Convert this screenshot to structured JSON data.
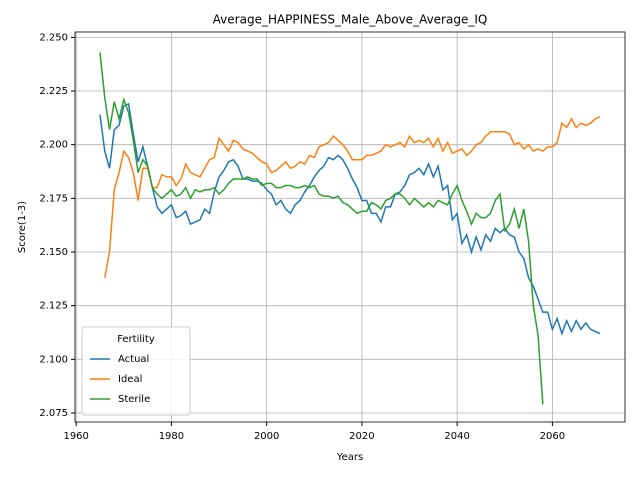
{
  "chart_data": {
    "type": "line",
    "title": "Average_HAPPINESS_Male_Above_Average_IQ",
    "xlabel": "Years",
    "ylabel": "Score(1-3)",
    "legend_title": "Fertility",
    "legend": "lower left",
    "grid": true,
    "xlim": [
      1959.75,
      2075.25
    ],
    "ylim": [
      2.0708,
      2.2525
    ],
    "xticks": [
      1960,
      1980,
      2000,
      2020,
      2040,
      2060
    ],
    "yticks": [
      2.075,
      {
        "value": 2.1,
        "label": "2.100"
      },
      2.125,
      {
        "value": 2.15,
        "label": "2.150"
      },
      2.175,
      {
        "value": 2.2,
        "label": "2.200"
      },
      2.225,
      {
        "value": 2.25,
        "label": "2.250"
      }
    ],
    "x": [
      1965,
      1966,
      1967,
      1968,
      1969,
      1970,
      1971,
      1972,
      1973,
      1974,
      1975,
      1976,
      1977,
      1978,
      1979,
      1980,
      1981,
      1982,
      1983,
      1984,
      1985,
      1986,
      1987,
      1988,
      1989,
      1990,
      1991,
      1992,
      1993,
      1994,
      1995,
      1996,
      1997,
      1998,
      1999,
      2000,
      2001,
      2002,
      2003,
      2004,
      2005,
      2006,
      2007,
      2008,
      2009,
      2010,
      2011,
      2012,
      2013,
      2014,
      2015,
      2016,
      2017,
      2018,
      2019,
      2020,
      2021,
      2022,
      2023,
      2024,
      2025,
      2026,
      2027,
      2028,
      2029,
      2030,
      2031,
      2032,
      2033,
      2034,
      2035,
      2036,
      2037,
      2038,
      2039,
      2040,
      2041,
      2042,
      2043,
      2044,
      2045,
      2046,
      2047,
      2048,
      2049,
      2050,
      2051,
      2052,
      2053,
      2054,
      2055,
      2056,
      2057,
      2058,
      2059,
      2060,
      2061,
      2062,
      2063,
      2064,
      2065,
      2066,
      2067,
      2068,
      2069,
      2070
    ],
    "series": [
      {
        "name": "Actual",
        "color": "#1f77b4",
        "values": [
          2.214,
          2.197,
          2.189,
          2.207,
          2.209,
          2.218,
          2.219,
          2.205,
          2.192,
          2.199,
          2.19,
          2.18,
          2.171,
          2.168,
          2.17,
          2.172,
          2.166,
          2.167,
          2.169,
          2.163,
          2.164,
          2.165,
          2.17,
          2.168,
          2.178,
          2.185,
          2.188,
          2.192,
          2.193,
          2.19,
          2.184,
          2.184,
          2.183,
          2.183,
          2.182,
          2.179,
          2.177,
          2.172,
          2.174,
          2.17,
          2.168,
          2.172,
          2.174,
          2.178,
          2.181,
          2.185,
          2.188,
          2.19,
          2.194,
          2.193,
          2.195,
          2.193,
          2.189,
          2.184,
          2.18,
          2.174,
          2.174,
          2.168,
          2.168,
          2.164,
          2.171,
          2.171,
          2.177,
          2.178,
          2.181,
          2.186,
          2.187,
          2.189,
          2.186,
          2.191,
          2.185,
          2.19,
          2.179,
          2.181,
          2.165,
          2.168,
          2.154,
          2.158,
          2.15,
          2.157,
          2.151,
          2.158,
          2.155,
          2.161,
          2.159,
          2.161,
          2.158,
          2.157,
          2.15,
          2.147,
          2.138,
          2.134,
          2.128,
          2.122,
          2.122,
          2.114,
          2.119,
          2.112,
          2.118,
          2.113,
          2.118,
          2.114,
          2.117,
          2.114,
          2.113,
          2.112
        ]
      },
      {
        "name": "Ideal",
        "color": "#ff7f0e",
        "values": [
          null,
          2.138,
          2.15,
          2.179,
          2.187,
          2.197,
          2.194,
          2.187,
          2.174,
          2.189,
          2.189,
          2.18,
          2.18,
          2.186,
          2.185,
          2.185,
          2.181,
          2.184,
          2.191,
          2.187,
          2.186,
          2.185,
          2.189,
          2.193,
          2.194,
          2.203,
          2.2,
          2.197,
          2.202,
          2.201,
          2.198,
          2.197,
          2.196,
          2.194,
          2.192,
          2.191,
          2.187,
          2.188,
          2.19,
          2.192,
          2.189,
          2.19,
          2.192,
          2.191,
          2.195,
          2.194,
          2.199,
          2.2,
          2.201,
          2.204,
          2.202,
          2.2,
          2.197,
          2.193,
          2.193,
          2.193,
          2.195,
          2.195,
          2.196,
          2.197,
          2.2,
          2.199,
          2.2,
          2.201,
          2.199,
          2.204,
          2.201,
          2.202,
          2.201,
          2.203,
          2.199,
          2.203,
          2.197,
          2.201,
          2.196,
          2.197,
          2.198,
          2.195,
          2.197,
          2.2,
          2.201,
          2.204,
          2.206,
          2.206,
          2.206,
          2.206,
          2.205,
          2.2,
          2.201,
          2.198,
          2.2,
          2.197,
          2.198,
          2.197,
          2.199,
          2.199,
          2.201,
          2.21,
          2.208,
          2.212,
          2.208,
          2.21,
          2.209,
          2.21,
          2.212,
          2.213
        ]
      },
      {
        "name": "Sterile",
        "color": "#2ca02c",
        "values": [
          2.243,
          2.222,
          2.207,
          2.22,
          2.212,
          2.221,
          2.215,
          2.202,
          2.187,
          2.193,
          2.19,
          2.18,
          2.177,
          2.175,
          2.177,
          2.179,
          2.176,
          2.177,
          2.18,
          2.175,
          2.179,
          2.178,
          2.179,
          2.179,
          2.18,
          2.177,
          2.179,
          2.182,
          2.184,
          2.184,
          2.184,
          2.185,
          2.184,
          2.184,
          2.181,
          2.182,
          2.182,
          2.18,
          2.18,
          2.181,
          2.181,
          2.18,
          2.18,
          2.181,
          2.18,
          2.181,
          2.177,
          2.176,
          2.176,
          2.175,
          2.176,
          2.173,
          2.172,
          2.17,
          2.168,
          2.169,
          2.169,
          2.173,
          2.172,
          2.17,
          2.174,
          2.175,
          2.177,
          2.177,
          2.175,
          2.172,
          2.175,
          2.173,
          2.171,
          2.173,
          2.171,
          2.174,
          2.173,
          2.172,
          2.177,
          2.181,
          2.174,
          2.169,
          2.163,
          2.168,
          2.166,
          2.166,
          2.168,
          2.174,
          2.177,
          2.16,
          2.163,
          2.17,
          2.161,
          2.17,
          2.155,
          2.125,
          2.111,
          2.079,
          null,
          null,
          null,
          null,
          null,
          null,
          null,
          null,
          null,
          null,
          null,
          null
        ]
      }
    ]
  }
}
